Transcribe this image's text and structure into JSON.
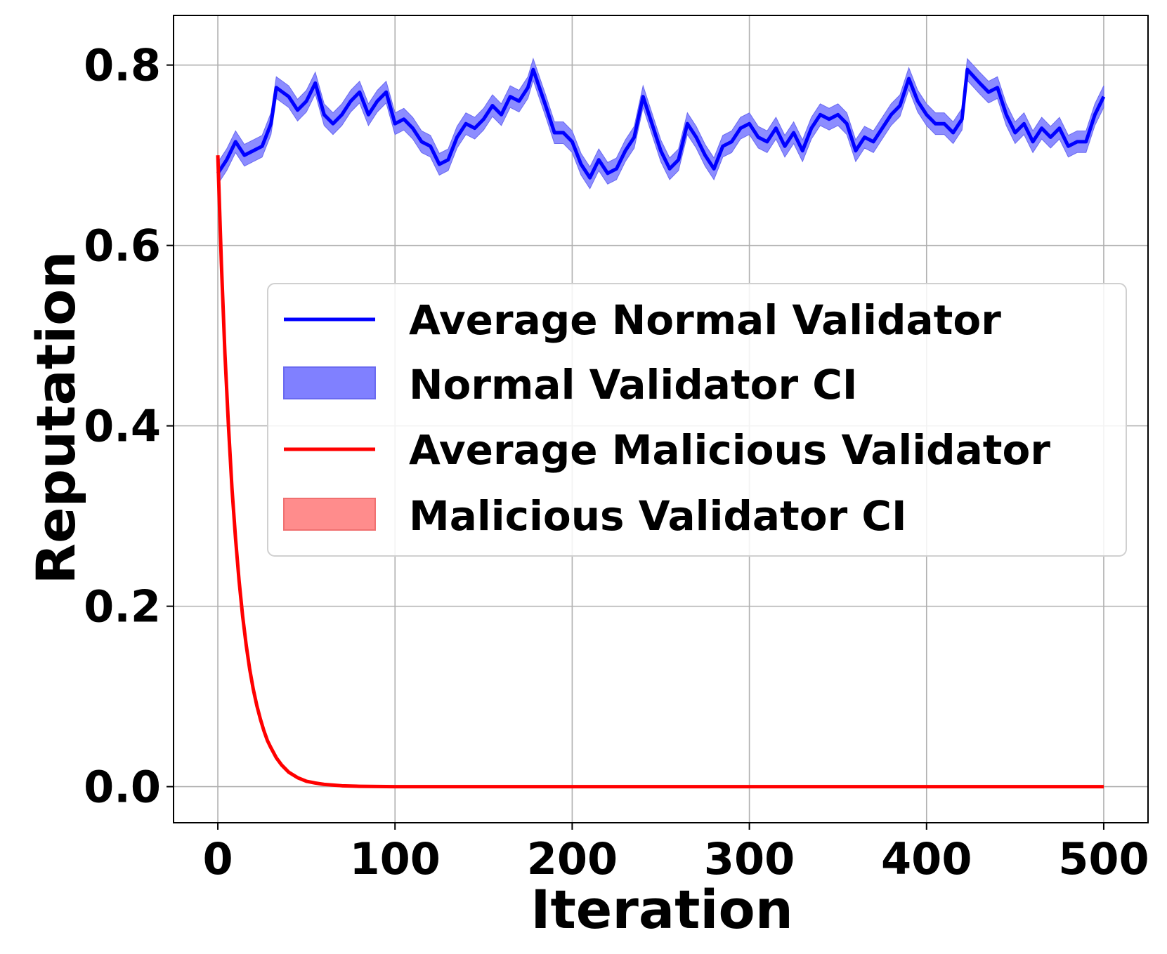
{
  "chart_data": {
    "type": "line",
    "title": "",
    "xlabel": "Iteration",
    "ylabel": "Reputation",
    "xlim": [
      -25,
      525
    ],
    "ylim": [
      -0.04,
      0.855
    ],
    "xticks": [
      0,
      100,
      200,
      300,
      400,
      500
    ],
    "xtick_labels": [
      "0",
      "100",
      "200",
      "300",
      "400",
      "500"
    ],
    "yticks": [
      0.0,
      0.2,
      0.4,
      0.6,
      0.8
    ],
    "ytick_labels": [
      "0.0",
      "0.2",
      "0.4",
      "0.6",
      "0.8"
    ],
    "grid": true,
    "legend_position": "center-right",
    "series": [
      {
        "name": "Average Normal Validator",
        "ci_name": "Normal Validator CI",
        "color": "#0000ff",
        "ci_color": "#8080ff",
        "ci_halfwidth": 0.012,
        "x": [
          0,
          5,
          10,
          15,
          20,
          25,
          30,
          33,
          40,
          45,
          50,
          55,
          60,
          65,
          70,
          75,
          80,
          85,
          90,
          95,
          100,
          105,
          110,
          115,
          120,
          125,
          130,
          135,
          140,
          145,
          150,
          155,
          160,
          165,
          170,
          175,
          178,
          185,
          190,
          195,
          200,
          205,
          210,
          215,
          220,
          225,
          230,
          235,
          240,
          245,
          250,
          255,
          260,
          265,
          270,
          275,
          280,
          285,
          290,
          295,
          300,
          305,
          310,
          315,
          320,
          325,
          330,
          335,
          340,
          345,
          350,
          355,
          360,
          365,
          370,
          375,
          380,
          385,
          390,
          395,
          400,
          405,
          410,
          415,
          420,
          423,
          430,
          435,
          440,
          445,
          450,
          455,
          460,
          465,
          470,
          475,
          480,
          485,
          490,
          495,
          500
        ],
        "y": [
          0.68,
          0.695,
          0.715,
          0.7,
          0.705,
          0.71,
          0.735,
          0.775,
          0.765,
          0.75,
          0.76,
          0.78,
          0.745,
          0.735,
          0.745,
          0.76,
          0.77,
          0.745,
          0.76,
          0.77,
          0.735,
          0.74,
          0.73,
          0.715,
          0.71,
          0.69,
          0.695,
          0.72,
          0.735,
          0.73,
          0.74,
          0.755,
          0.745,
          0.765,
          0.76,
          0.775,
          0.795,
          0.755,
          0.725,
          0.725,
          0.715,
          0.69,
          0.675,
          0.695,
          0.68,
          0.685,
          0.705,
          0.72,
          0.765,
          0.735,
          0.705,
          0.685,
          0.695,
          0.735,
          0.72,
          0.7,
          0.685,
          0.71,
          0.715,
          0.73,
          0.735,
          0.72,
          0.715,
          0.73,
          0.71,
          0.725,
          0.705,
          0.73,
          0.745,
          0.74,
          0.745,
          0.735,
          0.705,
          0.72,
          0.715,
          0.73,
          0.745,
          0.755,
          0.785,
          0.76,
          0.745,
          0.735,
          0.735,
          0.725,
          0.74,
          0.795,
          0.78,
          0.77,
          0.775,
          0.745,
          0.725,
          0.735,
          0.715,
          0.73,
          0.72,
          0.73,
          0.71,
          0.715,
          0.715,
          0.745,
          0.765
        ]
      },
      {
        "name": "Average Malicious Validator",
        "ci_name": "Malicious Validator CI",
        "color": "#ff0000",
        "ci_color": "#ff8080",
        "ci_halfwidth_start": 0.012,
        "x": [
          0,
          2,
          4,
          6,
          8,
          10,
          12,
          14,
          16,
          18,
          20,
          22,
          24,
          26,
          28,
          30,
          33,
          36,
          40,
          45,
          50,
          55,
          60,
          70,
          80,
          90,
          100,
          150,
          200,
          250,
          300,
          350,
          400,
          450,
          500
        ],
        "y": [
          0.7,
          0.58,
          0.48,
          0.4,
          0.33,
          0.275,
          0.228,
          0.189,
          0.157,
          0.13,
          0.108,
          0.09,
          0.075,
          0.062,
          0.051,
          0.043,
          0.032,
          0.024,
          0.016,
          0.01,
          0.006,
          0.004,
          0.0025,
          0.001,
          0.0004,
          0.0002,
          0.0,
          0.0,
          0.0,
          0.0,
          0.0,
          0.0,
          0.0,
          0.0,
          0.0
        ]
      }
    ]
  }
}
